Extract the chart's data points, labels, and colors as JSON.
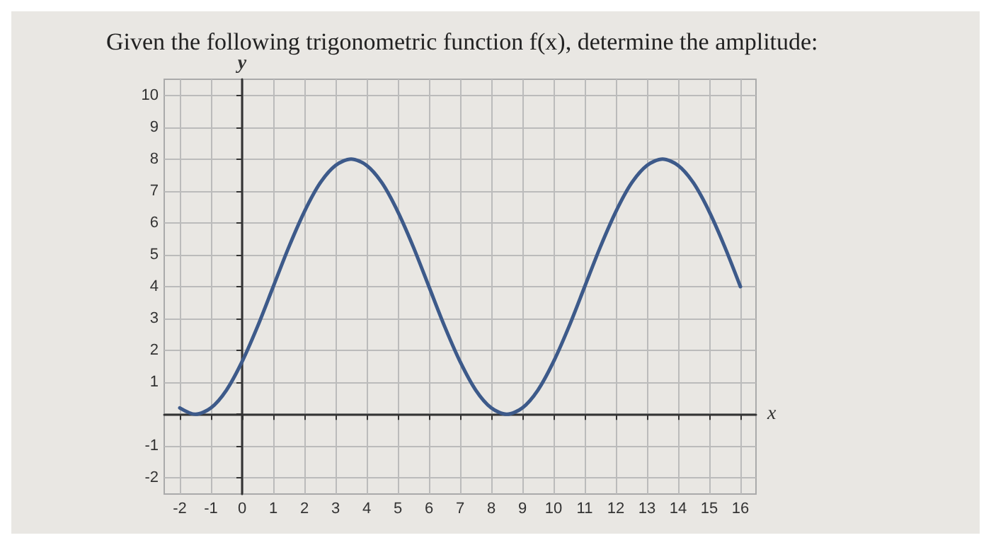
{
  "chart_data": {
    "type": "line",
    "title": "Given the following trigonometric function f(x), determine the amplitude:",
    "xlabel": "x",
    "ylabel": "y",
    "x": [
      -2,
      -1.5,
      -1,
      -0.5,
      0,
      0.5,
      1,
      1.5,
      2,
      2.5,
      3,
      3.5,
      4,
      4.5,
      5,
      5.5,
      6,
      6.5,
      7,
      7.5,
      8,
      8.5,
      9,
      9.5,
      10,
      10.5,
      11,
      11.5,
      12,
      12.5,
      13,
      13.5,
      14,
      14.5,
      15,
      15.5,
      16
    ],
    "series": [
      {
        "color": "#3d5a8a",
        "values": [
          0.2,
          0,
          0.2,
          0.76,
          1.65,
          2.76,
          4,
          5.24,
          6.35,
          7.24,
          7.8,
          8,
          7.8,
          7.24,
          6.35,
          5.24,
          4,
          2.76,
          1.65,
          0.76,
          0.2,
          0,
          0.2,
          0.76,
          1.65,
          2.76,
          4,
          5.24,
          6.35,
          7.24,
          7.8,
          8,
          7.8,
          7.24,
          6.35,
          5.24,
          4
        ]
      }
    ],
    "xlim": [
      -2.5,
      16.5
    ],
    "ylim": [
      -2.5,
      10.5
    ],
    "xticks": [
      -2,
      -1,
      0,
      1,
      2,
      3,
      4,
      5,
      6,
      7,
      8,
      9,
      10,
      11,
      12,
      13,
      14,
      15,
      16
    ],
    "yticks": [
      -2,
      -1,
      {
        "value": 0,
        "label": null
      },
      1,
      2,
      3,
      4,
      5,
      6,
      7,
      8,
      9,
      10
    ],
    "grid": true,
    "marker": "none",
    "line_style": "solid"
  }
}
